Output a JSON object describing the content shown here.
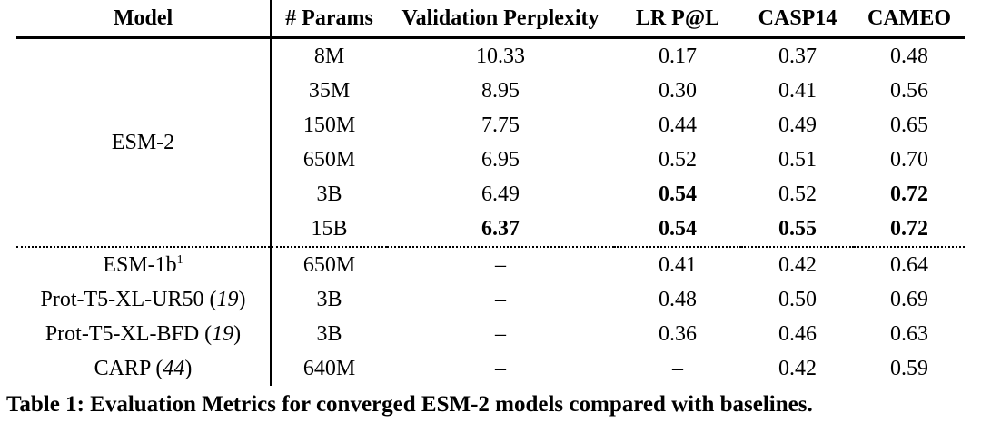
{
  "colors": {
    "background": "#ffffff",
    "text": "#000000",
    "rules": "#000000"
  },
  "caption": "Table 1: Evaluation Metrics for converged ESM-2 models compared with baselines.",
  "table": {
    "headers": [
      "Model",
      "# Params",
      "Validation Perplexity",
      "LR P@L",
      "CASP14",
      "CAMEO"
    ],
    "rows": [
      {
        "model": {
          "label": "ESM-2",
          "rowspan": 6
        },
        "params": "8M",
        "perplexity": "10.33",
        "lr_pl": "0.17",
        "casp14": "0.37",
        "cameo": "0.48",
        "bold": []
      },
      {
        "params": "35M",
        "perplexity": "8.95",
        "lr_pl": "0.30",
        "casp14": "0.41",
        "cameo": "0.56",
        "bold": []
      },
      {
        "params": "150M",
        "perplexity": "7.75",
        "lr_pl": "0.44",
        "casp14": "0.49",
        "cameo": "0.65",
        "bold": []
      },
      {
        "params": "650M",
        "perplexity": "6.95",
        "lr_pl": "0.52",
        "casp14": "0.51",
        "cameo": "0.70",
        "bold": []
      },
      {
        "params": "3B",
        "perplexity": "6.49",
        "lr_pl": "0.54",
        "casp14": "0.52",
        "cameo": "0.72",
        "bold": [
          "lr_pl",
          "cameo"
        ]
      },
      {
        "params": "15B",
        "perplexity": "6.37",
        "lr_pl": "0.54",
        "casp14": "0.55",
        "cameo": "0.72",
        "bold": [
          "perplexity",
          "lr_pl",
          "casp14",
          "cameo"
        ]
      },
      {
        "section_start": true,
        "model": {
          "label": "ESM-1b",
          "sup": "1"
        },
        "params": "650M",
        "perplexity": "–",
        "lr_pl": "0.41",
        "casp14": "0.42",
        "cameo": "0.64",
        "bold": []
      },
      {
        "model": {
          "label": "Prot-T5-XL-UR50",
          "ref": "19"
        },
        "params": "3B",
        "perplexity": "–",
        "lr_pl": "0.48",
        "casp14": "0.50",
        "cameo": "0.69",
        "bold": []
      },
      {
        "model": {
          "label": "Prot-T5-XL-BFD",
          "ref": "19"
        },
        "params": "3B",
        "perplexity": "–",
        "lr_pl": "0.36",
        "casp14": "0.46",
        "cameo": "0.63",
        "bold": []
      },
      {
        "model": {
          "label": "CARP",
          "ref": "44"
        },
        "params": "640M",
        "perplexity": "–",
        "lr_pl": "–",
        "casp14": "0.42",
        "cameo": "0.59",
        "bold": []
      }
    ]
  }
}
